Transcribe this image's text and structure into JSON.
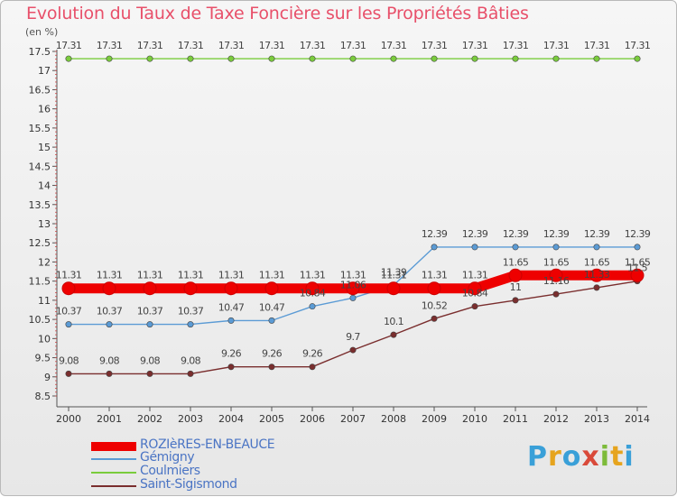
{
  "header": {
    "title": "Evolution du Taux de Taxe Foncière sur les Propriétés Bâties",
    "unit": "(en %)"
  },
  "chart_data": {
    "type": "line",
    "title": "Evolution du Taux de Taxe Foncière sur les Propriétés Bâties",
    "ylabel": "(en %)",
    "xlabel": "",
    "x": [
      2000,
      2001,
      2002,
      2003,
      2004,
      2005,
      2006,
      2007,
      2008,
      2009,
      2010,
      2011,
      2012,
      2013,
      2014
    ],
    "ylim": [
      8.5,
      17.5
    ],
    "yticks": [
      "8.5",
      "9",
      "9.5",
      "10",
      "10.5",
      "11",
      "11.5",
      "12",
      "12.5",
      "13",
      "13.5",
      "14",
      "14.5",
      "15",
      "15.5",
      "16",
      "16.5",
      "17",
      "17.5"
    ],
    "grid": false,
    "legend_position": "bottom-left",
    "series": [
      {
        "name": "ROZIèRES-EN-BEAUCE",
        "color": "#ee0000",
        "values": [
          11.31,
          11.31,
          11.31,
          11.31,
          11.31,
          11.31,
          11.31,
          11.31,
          11.31,
          11.31,
          11.31,
          11.65,
          11.65,
          11.65,
          11.65
        ],
        "labels": [
          "11.31",
          "11.31",
          "11.31",
          "11.31",
          "11.31",
          "11.31",
          "11.31",
          "11.31",
          "11.31",
          "11.31",
          "11.31",
          "11.65",
          "11.65",
          "11.65",
          "11.65"
        ]
      },
      {
        "name": "Gémigny",
        "color": "#5b9bd5",
        "values": [
          10.37,
          10.37,
          10.37,
          10.37,
          10.47,
          10.47,
          10.84,
          11.06,
          11.39,
          12.39,
          12.39,
          12.39,
          12.39,
          12.39,
          12.39
        ],
        "labels": [
          "10.37",
          "10.37",
          "10.37",
          "10.37",
          "10.47",
          "10.47",
          "10.84",
          "11.06",
          "11.39",
          "12.39",
          "12.39",
          "12.39",
          "12.39",
          "12.39",
          "12.39"
        ]
      },
      {
        "name": "Coulmiers",
        "color": "#7acc3c",
        "values": [
          17.31,
          17.31,
          17.31,
          17.31,
          17.31,
          17.31,
          17.31,
          17.31,
          17.31,
          17.31,
          17.31,
          17.31,
          17.31,
          17.31,
          17.31
        ],
        "labels": [
          "17.31",
          "17.31",
          "17.31",
          "17.31",
          "17.31",
          "17.31",
          "17.31",
          "17.31",
          "17.31",
          "17.31",
          "17.31",
          "17.31",
          "17.31",
          "17.31",
          "17.31"
        ]
      },
      {
        "name": "Saint-Sigismond",
        "color": "#7a2e2e",
        "values": [
          9.08,
          9.08,
          9.08,
          9.08,
          9.26,
          9.26,
          9.26,
          9.7,
          10.1,
          10.52,
          10.84,
          11,
          11.16,
          11.33,
          11.5
        ],
        "labels": [
          "9.08",
          "9.08",
          "9.08",
          "9.08",
          "9.26",
          "9.26",
          "9.26",
          "9.7",
          "10.1",
          "10.52",
          "10.84",
          "11",
          "11.16",
          "11.33",
          "11.5"
        ]
      }
    ]
  },
  "branding": {
    "logo_letters": [
      "P",
      "r",
      "o",
      "x",
      "i",
      "t",
      "i"
    ],
    "logo_colors": [
      "#3aa0d8",
      "#e6a41e",
      "#3aa0d8",
      "#d94a3a",
      "#7dbb3a",
      "#e6a41e",
      "#3aa0d8"
    ]
  }
}
